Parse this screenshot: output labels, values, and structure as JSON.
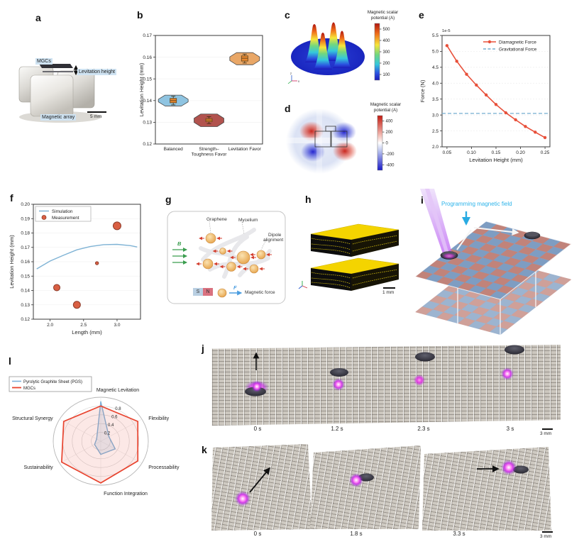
{
  "panel_letters": {
    "a": "a",
    "b": "b",
    "c": "c",
    "d": "d",
    "e": "e",
    "f": "f",
    "g": "g",
    "h": "h",
    "i": "i",
    "j": "j",
    "k": "k",
    "l": "l"
  },
  "panel_a": {
    "label_mgcs": "MGCs",
    "label_levitation": "Levitation height",
    "label_array": "Magnetic array",
    "scale_bar": "5 mm"
  },
  "panel_g": {
    "graphene": "Graphene",
    "mycelium": "Mycelium",
    "dipole_line1": "Dipole",
    "dipole_line2": "alignment",
    "b_field": "B",
    "south": "S",
    "north": "N",
    "force": "F",
    "magnetic_force": "Magnetic force"
  },
  "panel_h": {
    "scale_bar": "1 mm"
  },
  "panel_i": {
    "label": "Programming magnetic field",
    "label_color": "#2bb3ea"
  },
  "panel_j": {
    "times": [
      "0 s",
      "1.2 s",
      "2.3 s",
      "3 s"
    ],
    "scale_bar": "3 mm"
  },
  "panel_k": {
    "times": [
      "0 s",
      "1.8 s",
      "3.3 s"
    ],
    "scale_bar": "3 mm"
  },
  "chart_data": [
    {
      "id": "b",
      "type": "violin",
      "ylabel": "Levitation Height (mm)",
      "ylim": [
        0.12,
        0.17
      ],
      "yticks": [
        0.12,
        0.13,
        0.14,
        0.15,
        0.16,
        0.17
      ],
      "categories": [
        [
          "Balanced"
        ],
        [
          "Strength–",
          "Toughness Favor"
        ],
        [
          "Levitation Favor"
        ]
      ],
      "groups": [
        {
          "violin": [
            0.1375,
            0.1425
          ],
          "whisker": [
            0.138,
            0.142
          ],
          "box": [
            0.139,
            0.141
          ],
          "median": 0.14
        },
        {
          "violin": [
            0.128,
            0.1338
          ],
          "whisker": [
            0.1294,
            0.1326
          ],
          "box": [
            0.1303,
            0.1317
          ],
          "median": 0.131
        },
        {
          "violin": [
            0.1565,
            0.1621
          ],
          "whisker": [
            0.1573,
            0.1614
          ],
          "box": [
            0.1582,
            0.1606
          ],
          "median": 0.1595
        }
      ],
      "violin_colors": [
        "#8fc4e1",
        "#b2534e",
        "#e9a767"
      ],
      "box_fill": "#e8872e",
      "box_edge": "#6b4a1f"
    },
    {
      "id": "c",
      "type": "surface3d",
      "title_lines": [
        "Magnetic scalar",
        "potential (A)"
      ],
      "colorbar_ticks": [
        500,
        400,
        300,
        200,
        100
      ],
      "colorbar_range": [
        50,
        550
      ],
      "axis_labels": [
        "z",
        "x"
      ],
      "peaks": 4
    },
    {
      "id": "d",
      "type": "heatmap",
      "title_lines": [
        "Magnetic scalar",
        "potential (A)"
      ],
      "colorbar_ticks": [
        400,
        200,
        0,
        -200,
        -400
      ],
      "colorbar_range": [
        -500,
        500
      ]
    },
    {
      "id": "e",
      "type": "line",
      "xlabel": "Levitation Height (mm)",
      "ylabel": "Force (N)",
      "offset_text": "1e-5",
      "xlim": [
        0.04,
        0.26
      ],
      "ylim": [
        2.0,
        5.5
      ],
      "xticks": [
        0.05,
        0.1,
        0.15,
        0.2,
        0.25
      ],
      "yticks": [
        2.0,
        2.5,
        3.0,
        3.5,
        4.0,
        4.5,
        5.0,
        5.5
      ],
      "series": [
        {
          "name": "Diamagnetic Force",
          "color": "#e8503a",
          "style": "solid-marker",
          "x": [
            0.05,
            0.07,
            0.09,
            0.11,
            0.13,
            0.15,
            0.17,
            0.19,
            0.21,
            0.23,
            0.25
          ],
          "y": [
            5.18,
            4.69,
            4.28,
            3.94,
            3.63,
            3.33,
            3.07,
            2.85,
            2.64,
            2.46,
            2.29
          ]
        },
        {
          "name": "Gravitational Force",
          "color": "#74add1",
          "style": "dashed",
          "y_const": 3.05
        }
      ]
    },
    {
      "id": "f",
      "type": "line-scatter",
      "xlabel": "Length (mm)",
      "ylabel": "Levitation Height (mm)",
      "xlim": [
        1.75,
        3.35
      ],
      "ylim": [
        0.12,
        0.2
      ],
      "xticks": [
        2.0,
        2.5,
        3.0
      ],
      "yticks": [
        0.12,
        0.13,
        0.14,
        0.15,
        0.16,
        0.17,
        0.18,
        0.19,
        0.2
      ],
      "series": [
        {
          "name": "Simulation",
          "color": "#7fb3d5",
          "style": "line",
          "x": [
            1.8,
            2.0,
            2.2,
            2.4,
            2.6,
            2.8,
            3.0,
            3.2,
            3.3
          ],
          "y": [
            0.155,
            0.1605,
            0.1645,
            0.1683,
            0.1706,
            0.1719,
            0.1721,
            0.1712,
            0.1703
          ]
        },
        {
          "name": "Measurement",
          "color": "#d95f43",
          "edge": "#8c3b2a",
          "style": "scatter",
          "x": [
            2.1,
            2.4,
            2.7,
            3.0
          ],
          "y": [
            0.142,
            0.13,
            0.159,
            0.185
          ],
          "sizes": [
            4.5,
            5,
            2.2,
            5.5
          ]
        }
      ]
    },
    {
      "id": "l",
      "type": "radar",
      "axes": [
        "Magnetic Levitation",
        "Flexibility",
        "Processability",
        "Function Integration",
        "Sustainability",
        "Structural Synergy"
      ],
      "ticks": [
        0.2,
        0.4,
        0.6,
        0.8
      ],
      "series": [
        {
          "name": "Pyrolytic Graphite Sheet (PGS)",
          "color": "#7db1d8",
          "fill": "rgba(125,177,216,0.18)",
          "values": [
            0.9,
            0.2,
            0.35,
            0.3,
            0.15,
            0.1
          ]
        },
        {
          "name": "MGCs",
          "color": "#e8432e",
          "fill": "rgba(232,67,46,0.12)",
          "values": [
            0.8,
            0.9,
            0.9,
            0.95,
            0.95,
            0.9
          ]
        }
      ]
    }
  ]
}
